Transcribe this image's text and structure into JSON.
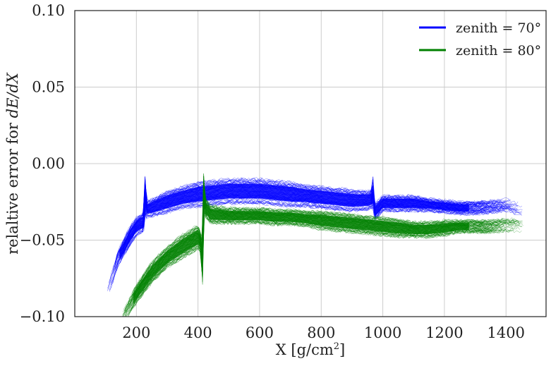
{
  "chart_data": {
    "type": "line",
    "title": "",
    "xlabel": "X [g/cm",
    "xlabel_sup": "2",
    "xlabel_close": "]",
    "ylabel_prefix": "relaltive error for ",
    "ylabel_math": "dE/dX",
    "xlim": [
      0,
      1530
    ],
    "ylim": [
      -0.1,
      0.1
    ],
    "xticks": [
      200,
      400,
      600,
      800,
      1000,
      1200,
      1400
    ],
    "xtick_labels": [
      "200",
      "400",
      "600",
      "800",
      "1000",
      "1200",
      "1400"
    ],
    "yticks": [
      -0.1,
      -0.05,
      0.0,
      0.05,
      0.1
    ],
    "ytick_labels": [
      "−0.10",
      "−0.05",
      "0.00",
      "0.05",
      "0.10"
    ],
    "grid": true,
    "legend_position": "top-right",
    "series": [
      {
        "name": "zenith = 70°",
        "color": "#0000ff",
        "x": [
          105,
          140,
          180,
          200,
          215,
          225,
          228,
          232,
          260,
          300,
          350,
          400,
          450,
          500,
          550,
          600,
          650,
          700,
          750,
          800,
          850,
          900,
          950,
          965,
          968,
          972,
          1000,
          1050,
          1100,
          1150,
          1200,
          1250,
          1300,
          1350,
          1400,
          1460
        ],
        "y": [
          -0.085,
          -0.062,
          -0.047,
          -0.041,
          -0.039,
          -0.038,
          -0.01,
          -0.03,
          -0.028,
          -0.025,
          -0.022,
          -0.02,
          -0.019,
          -0.018,
          -0.018,
          -0.018,
          -0.019,
          -0.02,
          -0.021,
          -0.022,
          -0.023,
          -0.024,
          -0.024,
          -0.023,
          -0.013,
          -0.032,
          -0.026,
          -0.026,
          -0.026,
          -0.027,
          -0.028,
          -0.029,
          -0.029,
          -0.028,
          -0.027,
          -0.03
        ],
        "spread": [
          0.004,
          0.005,
          0.006,
          0.006,
          0.006,
          0.006,
          0.004,
          0.005,
          0.006,
          0.007,
          0.007,
          0.008,
          0.008,
          0.008,
          0.008,
          0.008,
          0.008,
          0.008,
          0.007,
          0.007,
          0.007,
          0.007,
          0.006,
          0.006,
          0.005,
          0.005,
          0.005,
          0.005,
          0.005,
          0.004,
          0.004,
          0.004,
          0.004,
          0.004,
          0.004,
          0.004
        ]
      },
      {
        "name": "zenith = 80°",
        "color": "#008000",
        "x": [
          150,
          175,
          200,
          250,
          300,
          350,
          400,
          410,
          415,
          418,
          422,
          440,
          500,
          550,
          600,
          650,
          700,
          750,
          800,
          850,
          900,
          950,
          1000,
          1050,
          1100,
          1150,
          1200,
          1250,
          1300,
          1350,
          1400,
          1460
        ],
        "y": [
          -0.103,
          -0.094,
          -0.085,
          -0.071,
          -0.061,
          -0.054,
          -0.048,
          -0.052,
          -0.075,
          -0.008,
          -0.028,
          -0.033,
          -0.034,
          -0.034,
          -0.034,
          -0.035,
          -0.035,
          -0.036,
          -0.037,
          -0.038,
          -0.039,
          -0.04,
          -0.041,
          -0.042,
          -0.043,
          -0.043,
          -0.042,
          -0.041,
          -0.041,
          -0.041,
          -0.04,
          -0.041
        ],
        "spread": [
          0.004,
          0.005,
          0.006,
          0.007,
          0.007,
          0.008,
          0.008,
          0.006,
          0.005,
          0.004,
          0.006,
          0.006,
          0.005,
          0.005,
          0.005,
          0.005,
          0.005,
          0.005,
          0.006,
          0.006,
          0.006,
          0.006,
          0.006,
          0.006,
          0.005,
          0.005,
          0.005,
          0.004,
          0.004,
          0.004,
          0.004,
          0.004
        ]
      }
    ]
  }
}
